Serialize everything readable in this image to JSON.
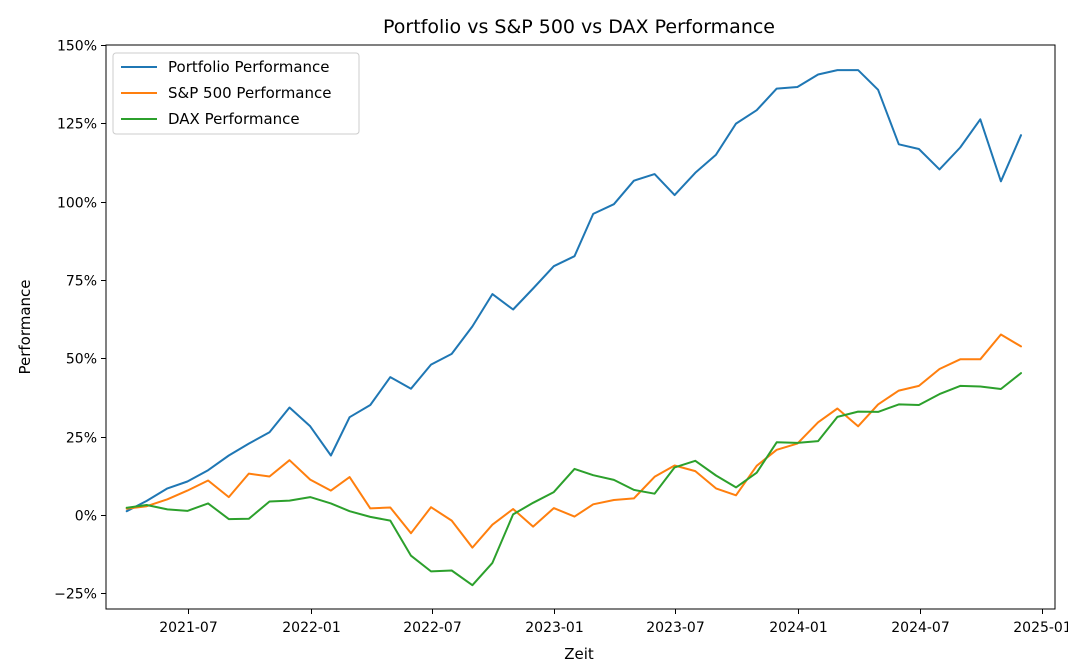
{
  "chart_data": {
    "type": "line",
    "title": "Portfolio vs S&P 500 vs DAX Performance",
    "xlabel": "Zeit",
    "ylabel": "Performance",
    "xlim": [
      "2021-02-28",
      "2025-01-20"
    ],
    "ylim": [
      -30,
      150
    ],
    "x_ticks": [
      "2021-07",
      "2022-01",
      "2022-07",
      "2023-01",
      "2023-07",
      "2024-01",
      "2024-07",
      "2025-01"
    ],
    "y_ticks": [
      "−25%",
      "0%",
      "25%",
      "50%",
      "75%",
      "100%",
      "125%",
      "150%"
    ],
    "y_tick_values": [
      -25,
      0,
      25,
      50,
      75,
      100,
      125,
      150
    ],
    "grid": false,
    "legend_position": "upper-left",
    "x": [
      "2021-03-31",
      "2021-04-30",
      "2021-05-31",
      "2021-06-30",
      "2021-07-31",
      "2021-08-31",
      "2021-09-30",
      "2021-10-31",
      "2021-11-30",
      "2021-12-31",
      "2022-01-31",
      "2022-02-28",
      "2022-03-31",
      "2022-04-30",
      "2022-05-31",
      "2022-06-30",
      "2022-07-31",
      "2022-08-31",
      "2022-09-30",
      "2022-10-31",
      "2022-11-30",
      "2022-12-31",
      "2023-01-31",
      "2023-02-28",
      "2023-03-31",
      "2023-04-30",
      "2023-05-31",
      "2023-06-30",
      "2023-07-31",
      "2023-08-31",
      "2023-09-30",
      "2023-10-31",
      "2023-11-30",
      "2023-12-31",
      "2024-01-31",
      "2024-02-29",
      "2024-03-31",
      "2024-04-30",
      "2024-05-31",
      "2024-06-30",
      "2024-07-31",
      "2024-08-31",
      "2024-09-30",
      "2024-10-31",
      "2024-11-30"
    ],
    "series": [
      {
        "name": "Portfolio Performance",
        "color": "#1f77b4",
        "values": [
          1.2,
          4.5,
          8.5,
          10.7,
          14.3,
          19.0,
          22.8,
          26.4,
          34.3,
          28.3,
          19.0,
          31.2,
          35.1,
          44.0,
          40.3,
          48.0,
          51.4,
          60.2,
          70.5,
          65.6,
          72.3,
          79.4,
          82.6,
          96.1,
          99.2,
          106.7,
          108.8,
          102.1,
          109.2,
          115.0,
          124.9,
          129.2,
          136.1,
          136.6,
          140.6,
          142.0,
          142.0,
          135.7,
          118.3,
          116.8,
          110.3,
          117.3,
          126.3,
          106.5,
          121.2
        ]
      },
      {
        "name": "S&P 500 Performance",
        "color": "#ff7f0e",
        "values": [
          2.0,
          2.8,
          5.0,
          7.8,
          11.0,
          5.7,
          13.2,
          12.3,
          17.5,
          11.3,
          7.8,
          12.1,
          2.1,
          2.4,
          -5.8,
          2.5,
          -1.8,
          -10.4,
          -3.1,
          1.9,
          -3.7,
          2.2,
          -0.5,
          3.4,
          4.8,
          5.3,
          12.2,
          15.8,
          14.0,
          8.5,
          6.3,
          15.7,
          20.8,
          22.8,
          29.6,
          34.0,
          28.3,
          35.3,
          39.7,
          41.2,
          46.6,
          49.7,
          49.7,
          57.6,
          53.8
        ]
      },
      {
        "name": "DAX Performance",
        "color": "#2ca02c",
        "values": [
          2.3,
          3.2,
          1.8,
          1.3,
          3.7,
          -1.3,
          -1.2,
          4.3,
          4.6,
          5.7,
          3.7,
          1.2,
          -0.6,
          -1.8,
          -13.0,
          -18.0,
          -17.7,
          -22.4,
          -15.3,
          0.2,
          3.9,
          7.3,
          14.7,
          12.7,
          11.2,
          8.0,
          6.8,
          15.2,
          17.3,
          12.6,
          8.8,
          13.5,
          23.2,
          23.0,
          23.6,
          31.3,
          33.0,
          32.9,
          35.3,
          35.1,
          38.6,
          41.2,
          41.0,
          40.2,
          45.3
        ]
      }
    ]
  }
}
